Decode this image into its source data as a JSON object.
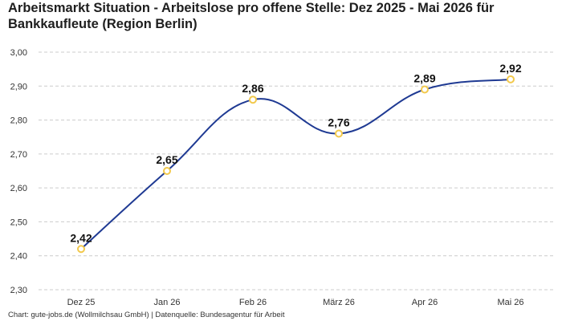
{
  "title": "Arbeitsmarkt Situation - Arbeitslose pro offene Stelle: Dez 2025 - Mai 2026 für Bankkaufleute (Region Berlin)",
  "footer": "Chart: gute-jobs.de (Wollmilchsau GmbH) | Datenquelle: Bundesagentur für Arbeit",
  "colors": {
    "line": "#1f3a93",
    "marker": "#f2c94c",
    "grid": "#cccccc"
  },
  "chart_data": {
    "type": "line",
    "categories": [
      "Dez 25",
      "Jan 26",
      "Feb 26",
      "März 26",
      "Apr 26",
      "Mai 26"
    ],
    "values": [
      2.42,
      2.65,
      2.86,
      2.76,
      2.89,
      2.92
    ],
    "value_labels": [
      "2,42",
      "2,65",
      "2,86",
      "2,76",
      "2,89",
      "2,92"
    ],
    "y_ticks": [
      2.3,
      2.4,
      2.5,
      2.6,
      2.7,
      2.8,
      2.9,
      3.0
    ],
    "y_tick_labels": [
      "2,30",
      "2,40",
      "2,50",
      "2,60",
      "2,70",
      "2,80",
      "2,90",
      "3,00"
    ],
    "ylim": [
      2.3,
      3.0
    ],
    "grid": true,
    "legend": "none",
    "xlabel": "",
    "ylabel": ""
  }
}
